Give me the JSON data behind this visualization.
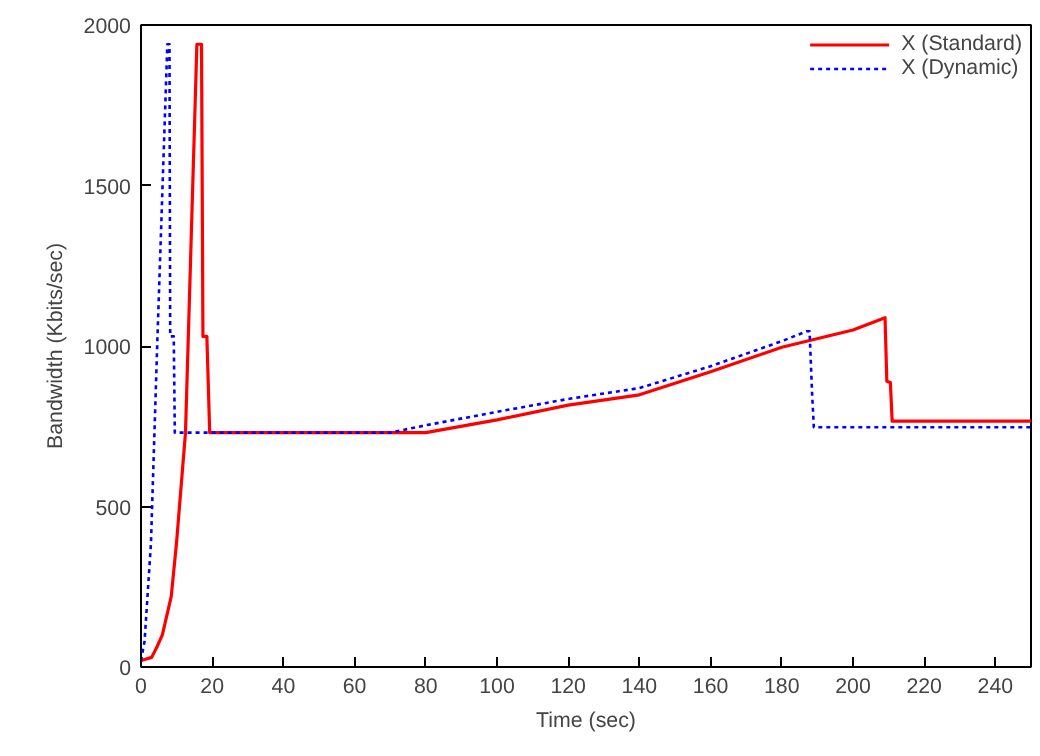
{
  "chart_data": {
    "type": "line",
    "xlabel": "Time (sec)",
    "ylabel": "Bandwidth (Kbits/sec)",
    "xlim": [
      0,
      250
    ],
    "ylim": [
      0,
      2000
    ],
    "xticks": [
      0,
      20,
      40,
      60,
      80,
      100,
      120,
      140,
      160,
      180,
      200,
      220,
      240
    ],
    "yticks": [
      0,
      500,
      1000,
      1500,
      2000
    ],
    "grid": false,
    "legend": "top right",
    "marker": "none",
    "series": [
      {
        "name": "X (Standard)",
        "color": "#ff0000",
        "line_style": "solid",
        "x": [
          0,
          3,
          4.5,
          6,
          8.5,
          10,
          12.5,
          15.7,
          17,
          17.4,
          18.5,
          19.3,
          40,
          60,
          80,
          100,
          120,
          140,
          160,
          180,
          200,
          209,
          209.5,
          210.5,
          211,
          230,
          250
        ],
        "values": [
          20,
          30,
          63,
          100,
          220,
          390,
          730,
          1940,
          1940,
          1030,
          1030,
          730,
          730,
          730,
          730,
          770,
          816,
          848,
          920,
          996,
          1050,
          1088,
          890,
          886,
          766,
          766,
          766
        ]
      },
      {
        "name": "X (Dynamic)",
        "color": "#0000ff",
        "line_style": "dotted",
        "x": [
          0,
          1,
          2.8,
          4.6,
          7.4,
          8,
          8.2,
          9.2,
          9.5,
          30,
          50,
          70,
          80,
          100,
          120,
          140,
          160,
          180,
          187,
          187.8,
          188.5,
          189,
          220,
          250
        ],
        "values": [
          20,
          80,
          386,
          1020,
          1940,
          1940,
          1030,
          1030,
          730,
          730,
          730,
          730,
          753,
          795,
          835,
          869,
          937,
          1015,
          1046,
          1046,
          854,
          747,
          747,
          747
        ]
      }
    ]
  }
}
